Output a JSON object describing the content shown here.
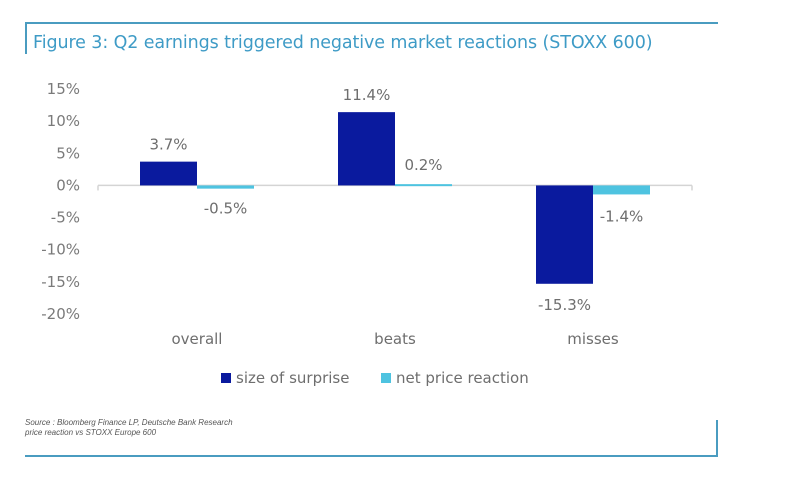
{
  "figure": {
    "title": "Figure 3: Q2 earnings triggered negative market reactions (STOXX 600)",
    "source_line1": "Source : Bloomberg Finance LP, Deutsche Bank Research",
    "source_line2": "price reaction vs STOXX Europe 600"
  },
  "chart_data": {
    "type": "bar",
    "title": "Figure 3: Q2 earnings triggered negative market reactions (STOXX 600)",
    "xlabel": "",
    "ylabel": "",
    "categories": [
      "overall",
      "beats",
      "misses"
    ],
    "series": [
      {
        "name": "size of surprise",
        "values": [
          3.7,
          11.4,
          -15.3
        ],
        "labels": [
          "3.7%",
          "11.4%",
          "-15.3%"
        ],
        "color": "#0a1a9e"
      },
      {
        "name": "net price reaction",
        "values": [
          -0.5,
          0.2,
          -1.4
        ],
        "labels": [
          "-0.5%",
          "0.2%",
          "-1.4%"
        ],
        "color": "#4ec3e0"
      }
    ],
    "ylim": [
      -20,
      15
    ],
    "yticks": [
      15,
      10,
      5,
      0,
      -5,
      -10,
      -15,
      -20
    ],
    "ytick_labels": [
      "15%",
      "10%",
      "5%",
      "0%",
      "-5%",
      "-10%",
      "-15%",
      "-20%"
    ],
    "grid": false,
    "legend": {
      "position": "bottom",
      "entries": [
        "size of surprise",
        "net price reaction"
      ]
    }
  }
}
